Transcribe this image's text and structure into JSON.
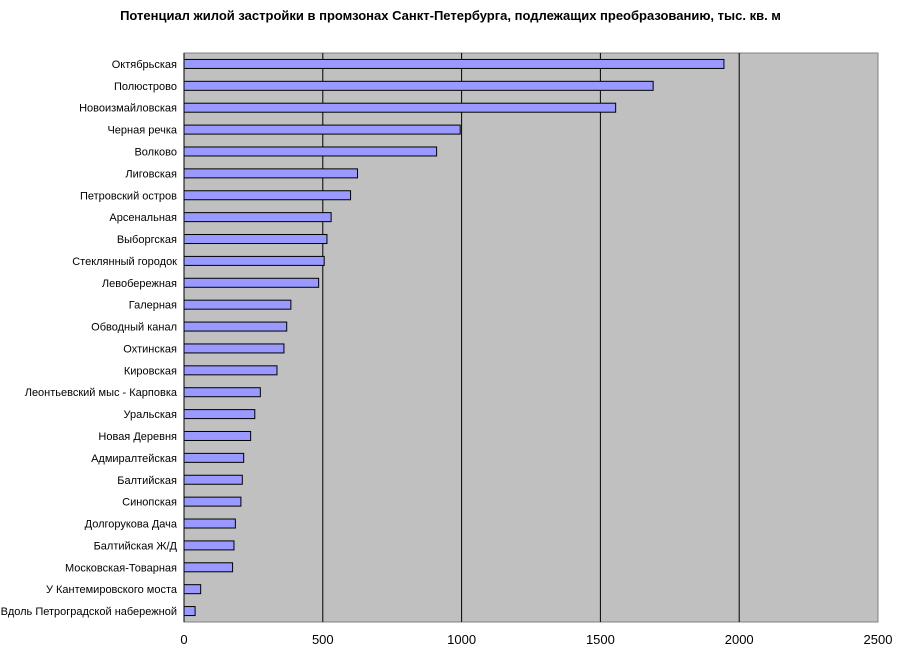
{
  "chart_data": {
    "type": "bar",
    "orientation": "horizontal",
    "title": "Потенциал жилой застройки в промзонах Санкт-Петербурга, подлежащих преобразованию, тыс. кв. м",
    "categories": [
      "Октябрьская",
      "Полюстрово",
      "Новоизмайловская",
      "Черная речка",
      "Волково",
      "Лиговская",
      "Петровский остров",
      "Арсенальная",
      "Выборгская",
      "Стеклянный городок",
      "Левобережная",
      "Галерная",
      "Обводный канал",
      "Охтинская",
      "Кировская",
      "Леонтьевский мыс - Карповка",
      "Уральская",
      "Новая Деревня",
      "Адмиралтейская",
      "Балтийская",
      "Синопская",
      "Долгорукова Дача",
      "Балтийская Ж/Д",
      "Московская-Товарная",
      "У Кантемировского моста",
      "Вдоль Петроградской набережной"
    ],
    "values": [
      1945,
      1690,
      1555,
      995,
      910,
      625,
      600,
      530,
      515,
      505,
      485,
      385,
      370,
      360,
      335,
      275,
      255,
      240,
      215,
      210,
      205,
      185,
      180,
      175,
      60,
      40
    ],
    "xlim": [
      0,
      2500
    ],
    "xticks": [
      "0",
      "500",
      "1000",
      "1500",
      "2000",
      "2500"
    ],
    "xtick_values": [
      0,
      500,
      1000,
      1500,
      2000,
      2500
    ],
    "grid": "vertical",
    "legend": "none",
    "colors": {
      "plot_bg": "#c0c0c0",
      "bar_fill": "#9999ff",
      "bar_stroke": "#000000",
      "grid": "#000000"
    }
  }
}
